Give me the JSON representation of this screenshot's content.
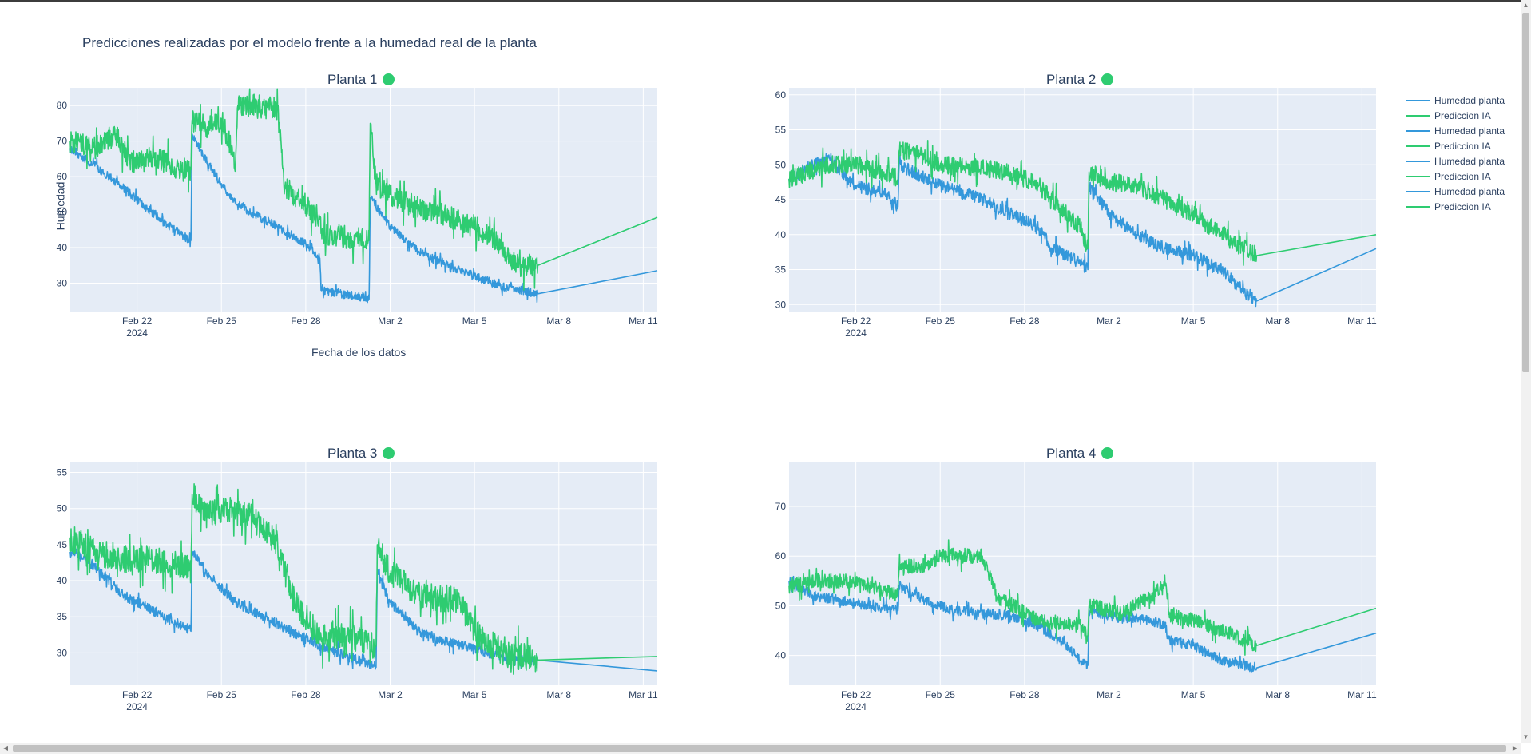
{
  "figure": {
    "title": "Predicciones realizadas por el modelo frente a la humedad real de la planta",
    "xaxis_title": "Fecha de los datos",
    "yaxis_title": "Humedad"
  },
  "colors": {
    "real": "#3498db",
    "pred": "#2ecc71",
    "plot_bg": "#e5ecf6",
    "status_ok": "#2ecc71"
  },
  "legend": [
    {
      "label": "Humedad planta",
      "color": "#3498db"
    },
    {
      "label": "Prediccion IA",
      "color": "#2ecc71"
    },
    {
      "label": "Humedad planta",
      "color": "#3498db"
    },
    {
      "label": "Prediccion IA",
      "color": "#2ecc71"
    },
    {
      "label": "Humedad planta",
      "color": "#3498db"
    },
    {
      "label": "Prediccion IA",
      "color": "#2ecc71"
    },
    {
      "label": "Humedad planta",
      "color": "#3498db"
    },
    {
      "label": "Prediccion IA",
      "color": "#2ecc71"
    }
  ],
  "xticks": [
    "Feb 22",
    "Feb 25",
    "Feb 28",
    "Mar 2",
    "Mar 5",
    "Mar 8",
    "Mar 11"
  ],
  "xtick_year": "2024",
  "chart_data": [
    {
      "type": "line",
      "title": "Planta 1",
      "status_icon": "green-dot",
      "xlim": [
        "2024-02-19 15:00",
        "2024-03-11 12:00"
      ],
      "ylim": [
        22,
        85
      ],
      "yticks": [
        30,
        40,
        50,
        60,
        70,
        80
      ],
      "series": [
        {
          "name": "Humedad planta",
          "noise": 1.2,
          "points": [
            [
              "2024-02-19 15:00",
              68
            ],
            [
              "2024-02-20 12:00",
              63
            ],
            [
              "2024-02-21 12:00",
              57
            ],
            [
              "2024-02-22 12:00",
              50
            ],
            [
              "2024-02-23 12:00",
              44
            ],
            [
              "2024-02-23 22:00",
              42
            ],
            [
              "2024-02-23 23:00",
              72
            ],
            [
              "2024-02-24 12:00",
              64
            ],
            [
              "2024-02-25 06:00",
              55
            ],
            [
              "2024-02-26 00:00",
              50
            ],
            [
              "2024-02-27 00:00",
              46
            ],
            [
              "2024-02-28 00:00",
              41
            ],
            [
              "2024-02-28 12:00",
              37
            ],
            [
              "2024-02-28 13:00",
              28
            ],
            [
              "2024-03-01 00:00",
              26
            ],
            [
              "2024-03-01 06:00",
              25.5
            ],
            [
              "2024-03-01 07:00",
              54
            ],
            [
              "2024-03-02 00:00",
              46
            ],
            [
              "2024-03-03 00:00",
              39
            ],
            [
              "2024-03-04 00:00",
              35
            ],
            [
              "2024-03-05 00:00",
              32
            ],
            [
              "2024-03-06 00:00",
              29
            ],
            [
              "2024-03-07 06:00",
              27
            ],
            [
              "2024-03-11 12:00",
              33.5
            ]
          ]
        },
        {
          "name": "Prediccion IA",
          "noise": 3.2,
          "points": [
            [
              "2024-02-19 15:00",
              70
            ],
            [
              "2024-02-20 12:00",
              68
            ],
            [
              "2024-02-21 06:00",
              72
            ],
            [
              "2024-02-21 18:00",
              64
            ],
            [
              "2024-02-22 12:00",
              66
            ],
            [
              "2024-02-23 12:00",
              62
            ],
            [
              "2024-02-23 22:00",
              62
            ],
            [
              "2024-02-23 23:00",
              76
            ],
            [
              "2024-02-24 12:00",
              74
            ],
            [
              "2024-02-25 00:00",
              76
            ],
            [
              "2024-02-25 12:00",
              64
            ],
            [
              "2024-02-25 14:00",
              80
            ],
            [
              "2024-02-26 12:00",
              80
            ],
            [
              "2024-02-27 00:00",
              79
            ],
            [
              "2024-02-27 06:00",
              57
            ],
            [
              "2024-02-28 00:00",
              52
            ],
            [
              "2024-02-28 12:00",
              48
            ],
            [
              "2024-02-28 13:00",
              44
            ],
            [
              "2024-03-01 06:00",
              42
            ],
            [
              "2024-03-01 07:00",
              75
            ],
            [
              "2024-03-01 12:00",
              58
            ],
            [
              "2024-03-02 00:00",
              55
            ],
            [
              "2024-03-03 00:00",
              51
            ],
            [
              "2024-03-04 00:00",
              49
            ],
            [
              "2024-03-05 00:00",
              46
            ],
            [
              "2024-03-06 00:00",
              40
            ],
            [
              "2024-03-06 12:00",
              35
            ],
            [
              "2024-03-07 06:00",
              35
            ],
            [
              "2024-03-11 12:00",
              48.5
            ]
          ]
        }
      ]
    },
    {
      "type": "line",
      "title": "Planta 2",
      "status_icon": "green-dot",
      "xlim": [
        "2024-02-19 15:00",
        "2024-03-11 12:00"
      ],
      "ylim": [
        29,
        61
      ],
      "yticks": [
        30,
        35,
        40,
        45,
        50,
        55,
        60
      ],
      "series": [
        {
          "name": "Humedad planta",
          "noise": 0.9,
          "points": [
            [
              "2024-02-19 15:00",
              48
            ],
            [
              "2024-02-20 12:00",
              50
            ],
            [
              "2024-02-21 00:00",
              51
            ],
            [
              "2024-02-22 00:00",
              47
            ],
            [
              "2024-02-23 00:00",
              46
            ],
            [
              "2024-02-23 12:00",
              44
            ],
            [
              "2024-02-23 13:00",
              50
            ],
            [
              "2024-02-25 00:00",
              47
            ],
            [
              "2024-02-26 12:00",
              45
            ],
            [
              "2024-02-27 12:00",
              43
            ],
            [
              "2024-02-28 12:00",
              41
            ],
            [
              "2024-02-29 00:00",
              38
            ],
            [
              "2024-03-01 00:00",
              36
            ],
            [
              "2024-03-01 06:00",
              35
            ],
            [
              "2024-03-01 07:00",
              47
            ],
            [
              "2024-03-02 00:00",
              43
            ],
            [
              "2024-03-03 00:00",
              40
            ],
            [
              "2024-03-04 00:00",
              38
            ],
            [
              "2024-03-05 00:00",
              37
            ],
            [
              "2024-03-06 00:00",
              35
            ],
            [
              "2024-03-06 18:00",
              32
            ],
            [
              "2024-03-07 06:00",
              30.5
            ],
            [
              "2024-03-11 12:00",
              38
            ]
          ]
        },
        {
          "name": "Prediccion IA",
          "noise": 1.3,
          "points": [
            [
              "2024-02-19 15:00",
              48
            ],
            [
              "2024-02-21 00:00",
              50
            ],
            [
              "2024-02-22 00:00",
              50
            ],
            [
              "2024-02-23 00:00",
              49
            ],
            [
              "2024-02-23 12:00",
              48
            ],
            [
              "2024-02-23 13:00",
              52
            ],
            [
              "2024-02-24 00:00",
              52
            ],
            [
              "2024-02-25 00:00",
              50
            ],
            [
              "2024-02-26 12:00",
              49.5
            ],
            [
              "2024-02-27 12:00",
              49
            ],
            [
              "2024-02-28 12:00",
              47
            ],
            [
              "2024-02-29 00:00",
              45
            ],
            [
              "2024-03-01 00:00",
              41
            ],
            [
              "2024-03-01 06:00",
              38
            ],
            [
              "2024-03-01 07:00",
              49
            ],
            [
              "2024-03-02 00:00",
              47.5
            ],
            [
              "2024-03-03 00:00",
              47
            ],
            [
              "2024-03-04 00:00",
              45
            ],
            [
              "2024-03-05 00:00",
              43
            ],
            [
              "2024-03-06 00:00",
              40
            ],
            [
              "2024-03-07 06:00",
              37
            ],
            [
              "2024-03-11 12:00",
              40
            ]
          ]
        }
      ]
    },
    {
      "type": "line",
      "title": "Planta 3",
      "status_icon": "green-dot",
      "xlim": [
        "2024-02-19 15:00",
        "2024-03-11 12:00"
      ],
      "ylim": [
        25.5,
        56.5
      ],
      "yticks": [
        30,
        35,
        40,
        45,
        50,
        55
      ],
      "series": [
        {
          "name": "Humedad planta",
          "noise": 0.7,
          "points": [
            [
              "2024-02-19 15:00",
              44
            ],
            [
              "2024-02-20 12:00",
              42
            ],
            [
              "2024-02-21 12:00",
              38
            ],
            [
              "2024-02-22 12:00",
              36
            ],
            [
              "2024-02-23 12:00",
              34
            ],
            [
              "2024-02-23 22:00",
              33
            ],
            [
              "2024-02-23 23:00",
              44
            ],
            [
              "2024-02-24 12:00",
              41
            ],
            [
              "2024-02-25 12:00",
              37
            ],
            [
              "2024-02-26 12:00",
              35
            ],
            [
              "2024-02-27 12:00",
              33
            ],
            [
              "2024-02-28 12:00",
              31
            ],
            [
              "2024-02-29 12:00",
              29.5
            ],
            [
              "2024-03-01 12:00",
              28
            ],
            [
              "2024-03-01 13:00",
              41
            ],
            [
              "2024-03-02 00:00",
              37
            ],
            [
              "2024-03-03 00:00",
              33
            ],
            [
              "2024-03-04 00:00",
              31.5
            ],
            [
              "2024-03-05 00:00",
              30.5
            ],
            [
              "2024-03-06 00:00",
              29.5
            ],
            [
              "2024-03-07 06:00",
              29
            ],
            [
              "2024-03-11 12:00",
              27.5
            ]
          ]
        },
        {
          "name": "Prediccion IA",
          "noise": 1.9,
          "points": [
            [
              "2024-02-19 15:00",
              46
            ],
            [
              "2024-02-20 12:00",
              44
            ],
            [
              "2024-02-21 12:00",
              43
            ],
            [
              "2024-02-22 12:00",
              43
            ],
            [
              "2024-02-23 12:00",
              42
            ],
            [
              "2024-02-23 22:00",
              42
            ],
            [
              "2024-02-23 23:00",
              52
            ],
            [
              "2024-02-24 12:00",
              49
            ],
            [
              "2024-02-25 00:00",
              50
            ],
            [
              "2024-02-26 00:00",
              49
            ],
            [
              "2024-02-27 00:00",
              45
            ],
            [
              "2024-02-27 12:00",
              38
            ],
            [
              "2024-02-28 12:00",
              32
            ],
            [
              "2024-02-29 12:00",
              32.5
            ],
            [
              "2024-03-01 12:00",
              31
            ],
            [
              "2024-03-01 13:00",
              45
            ],
            [
              "2024-03-02 00:00",
              41
            ],
            [
              "2024-03-03 00:00",
              38
            ],
            [
              "2024-03-04 00:00",
              37.5
            ],
            [
              "2024-03-04 12:00",
              37
            ],
            [
              "2024-03-05 00:00",
              33
            ],
            [
              "2024-03-06 00:00",
              30
            ],
            [
              "2024-03-07 06:00",
              29
            ],
            [
              "2024-03-11 12:00",
              29.5
            ]
          ]
        }
      ]
    },
    {
      "type": "line",
      "title": "Planta 4",
      "status_icon": "green-dot",
      "xlim": [
        "2024-02-19 15:00",
        "2024-03-11 12:00"
      ],
      "ylim": [
        34,
        79
      ],
      "yticks": [
        40,
        50,
        60,
        70
      ],
      "series": [
        {
          "name": "Humedad planta",
          "noise": 1.0,
          "points": [
            [
              "2024-02-19 15:00",
              55
            ],
            [
              "2024-02-20 12:00",
              52
            ],
            [
              "2024-02-21 12:00",
              51
            ],
            [
              "2024-02-22 12:00",
              50
            ],
            [
              "2024-02-23 12:00",
              49
            ],
            [
              "2024-02-23 13:00",
              54
            ],
            [
              "2024-02-24 12:00",
              51
            ],
            [
              "2024-02-25 12:00",
              49
            ],
            [
              "2024-02-26 12:00",
              48.5
            ],
            [
              "2024-02-27 12:00",
              48
            ],
            [
              "2024-02-28 12:00",
              46
            ],
            [
              "2024-02-29 12:00",
              42
            ],
            [
              "2024-03-01 00:00",
              39
            ],
            [
              "2024-03-01 06:00",
              38
            ],
            [
              "2024-03-01 07:00",
              49
            ],
            [
              "2024-03-02 00:00",
              48
            ],
            [
              "2024-03-03 12:00",
              47
            ],
            [
              "2024-03-04 00:00",
              46
            ],
            [
              "2024-03-04 04:00",
              43
            ],
            [
              "2024-03-05 00:00",
              42
            ],
            [
              "2024-03-06 00:00",
              39
            ],
            [
              "2024-03-07 06:00",
              37.5
            ],
            [
              "2024-03-11 12:00",
              44.5
            ]
          ]
        },
        {
          "name": "Prediccion IA",
          "noise": 1.5,
          "points": [
            [
              "2024-02-19 15:00",
              54
            ],
            [
              "2024-02-20 12:00",
              55
            ],
            [
              "2024-02-21 12:00",
              55
            ],
            [
              "2024-02-22 12:00",
              54
            ],
            [
              "2024-02-23 12:00",
              52
            ],
            [
              "2024-02-23 13:00",
              58
            ],
            [
              "2024-02-24 12:00",
              58
            ],
            [
              "2024-02-25 00:00",
              60
            ],
            [
              "2024-02-26 12:00",
              60
            ],
            [
              "2024-02-27 00:00",
              52
            ],
            [
              "2024-02-28 12:00",
              47
            ],
            [
              "2024-03-01 00:00",
              46
            ],
            [
              "2024-03-01 06:00",
              44
            ],
            [
              "2024-03-01 07:00",
              50
            ],
            [
              "2024-03-02 12:00",
              48.5
            ],
            [
              "2024-03-03 12:00",
              52
            ],
            [
              "2024-03-04 00:00",
              54
            ],
            [
              "2024-03-04 04:00",
              48
            ],
            [
              "2024-03-05 00:00",
              47
            ],
            [
              "2024-03-06 00:00",
              45
            ],
            [
              "2024-03-06 12:00",
              44
            ],
            [
              "2024-03-07 06:00",
              42
            ],
            [
              "2024-03-11 12:00",
              49.5
            ]
          ]
        }
      ]
    }
  ]
}
